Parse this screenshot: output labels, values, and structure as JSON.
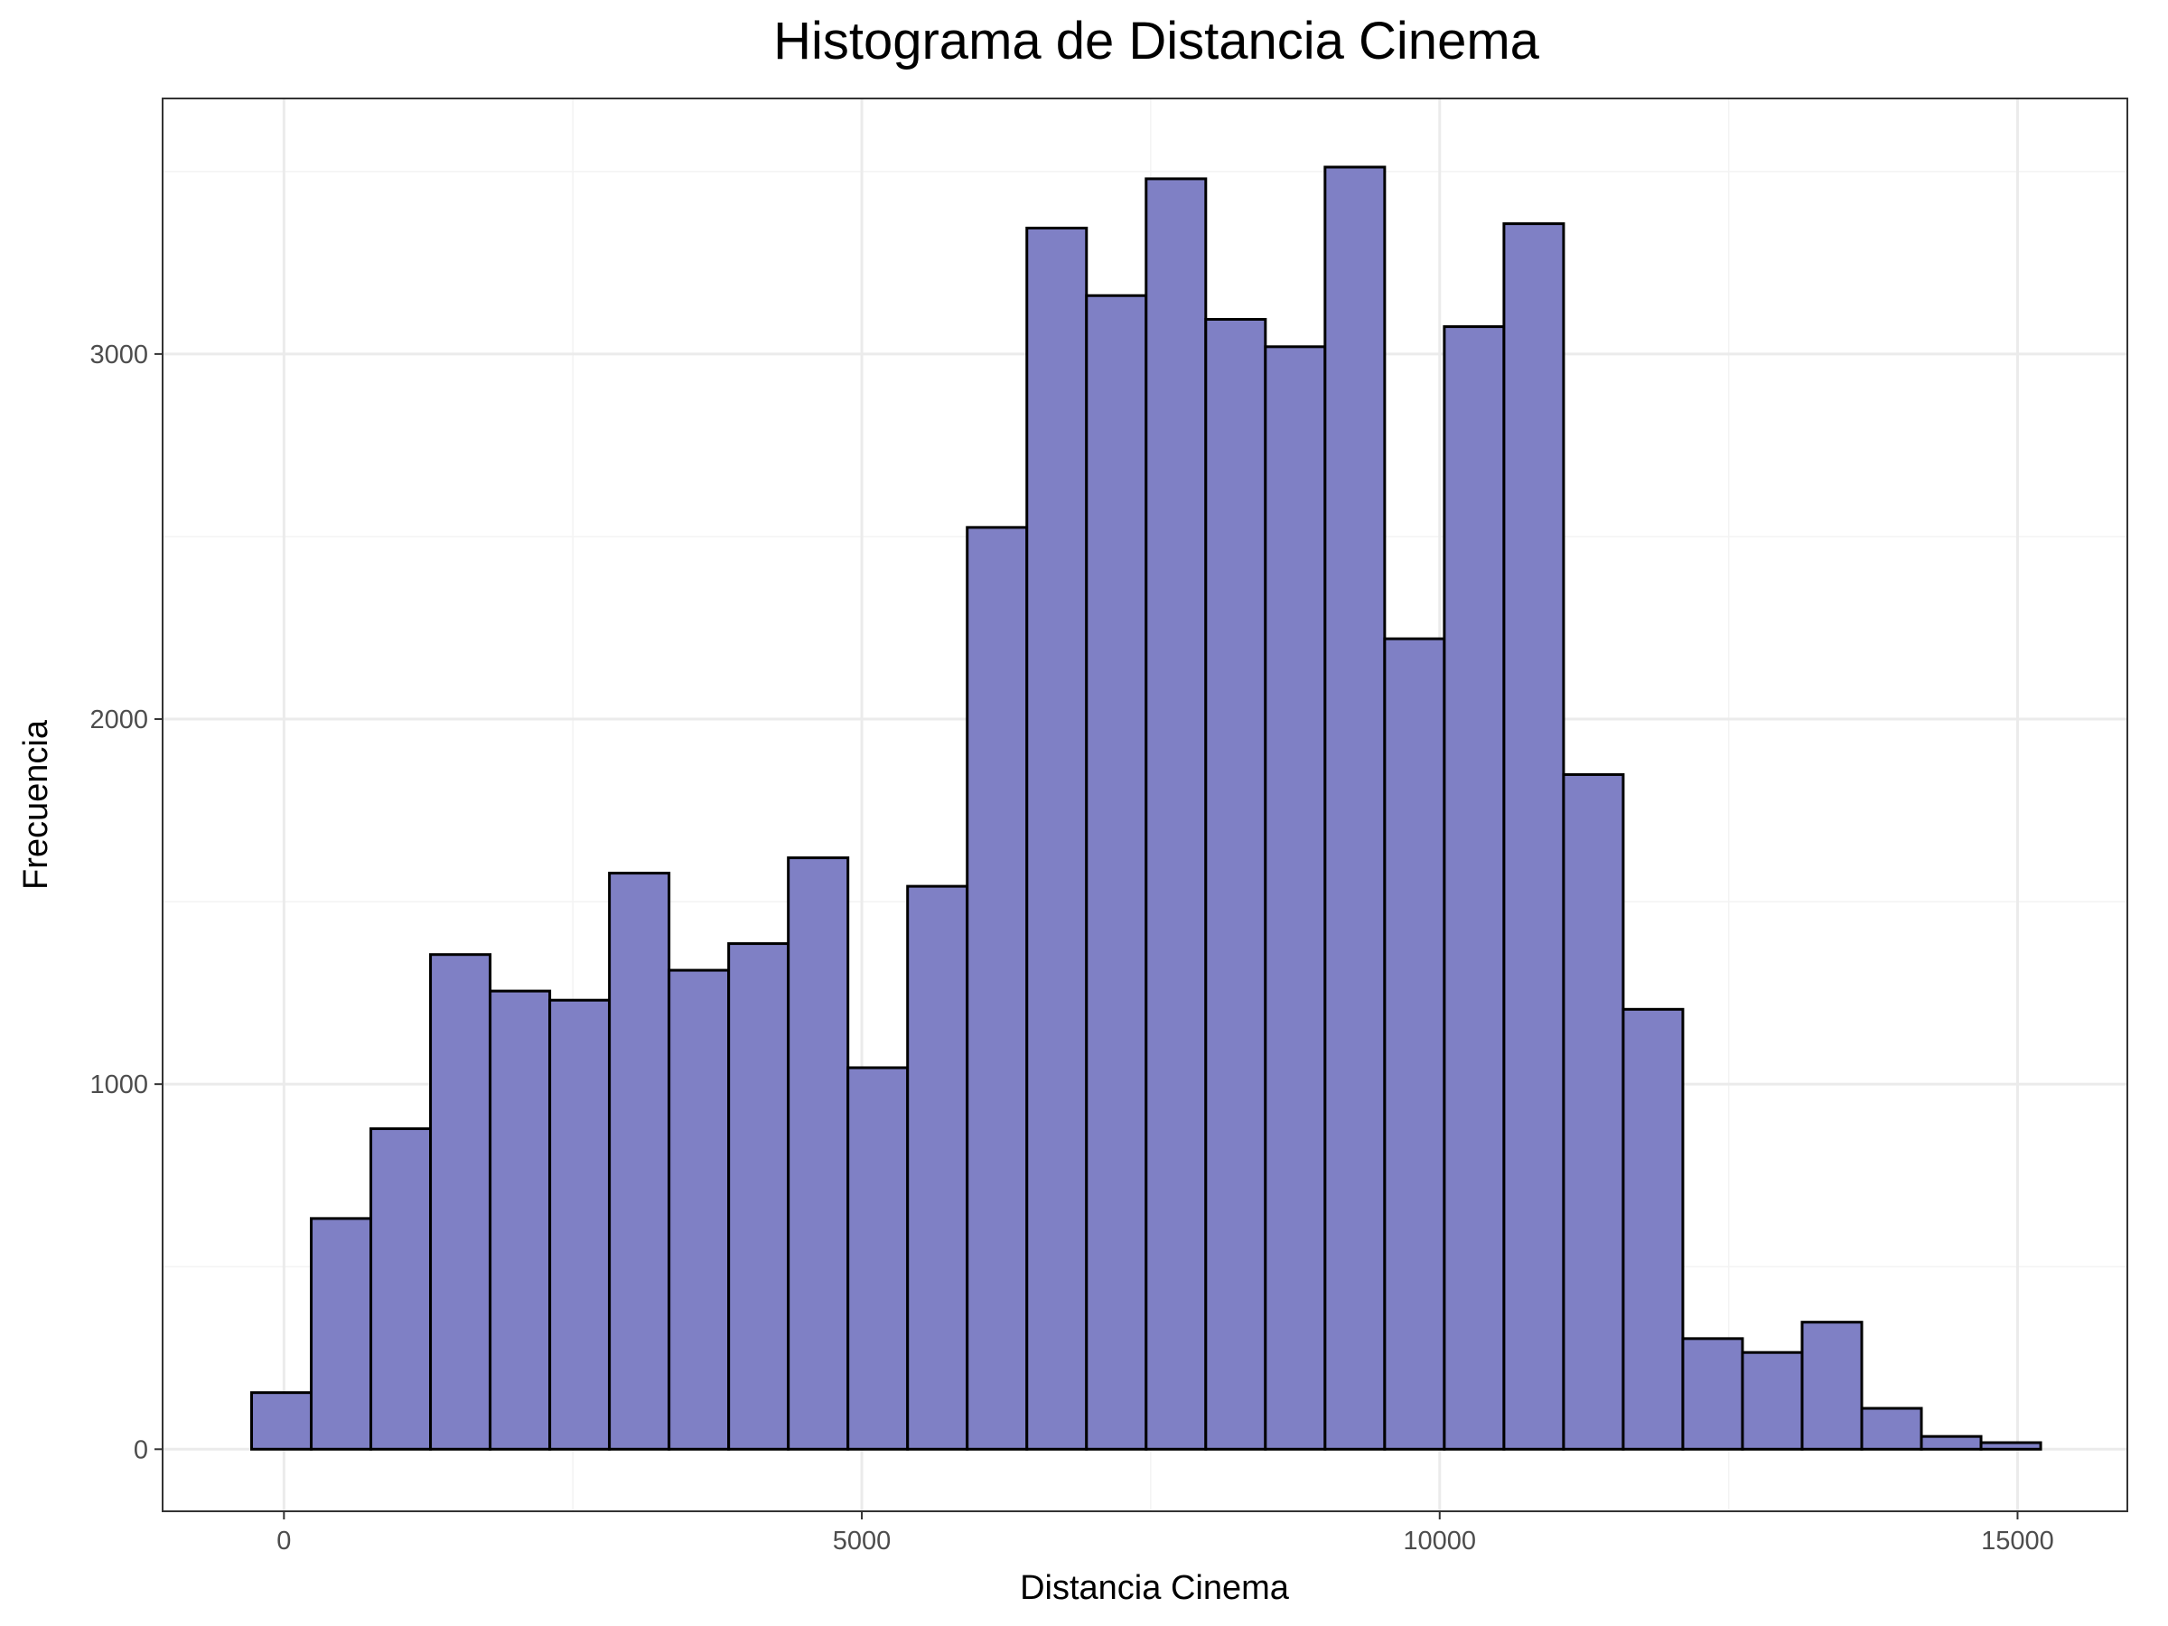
{
  "chart_data": {
    "type": "bar",
    "title": "Histograma de Distancia Cinema",
    "xlabel": "Distancia Cinema",
    "ylabel": "Frecuencia",
    "bin_width": 516,
    "bins": [
      {
        "x0": -280,
        "x1": 236,
        "count": 155
      },
      {
        "x0": 236,
        "x1": 752,
        "count": 632
      },
      {
        "x0": 752,
        "x1": 1268,
        "count": 878
      },
      {
        "x0": 1268,
        "x1": 1784,
        "count": 1355
      },
      {
        "x0": 1784,
        "x1": 2300,
        "count": 1255
      },
      {
        "x0": 2300,
        "x1": 2816,
        "count": 1230
      },
      {
        "x0": 2816,
        "x1": 3332,
        "count": 1578
      },
      {
        "x0": 3332,
        "x1": 3848,
        "count": 1312
      },
      {
        "x0": 3848,
        "x1": 4364,
        "count": 1385
      },
      {
        "x0": 4364,
        "x1": 4880,
        "count": 1620
      },
      {
        "x0": 4880,
        "x1": 5396,
        "count": 1045
      },
      {
        "x0": 5396,
        "x1": 5912,
        "count": 1542
      },
      {
        "x0": 5912,
        "x1": 6428,
        "count": 2525
      },
      {
        "x0": 6428,
        "x1": 6944,
        "count": 3345
      },
      {
        "x0": 6944,
        "x1": 7460,
        "count": 3160
      },
      {
        "x0": 7460,
        "x1": 7976,
        "count": 3480
      },
      {
        "x0": 7976,
        "x1": 8492,
        "count": 3095
      },
      {
        "x0": 8492,
        "x1": 9008,
        "count": 3020
      },
      {
        "x0": 9008,
        "x1": 9524,
        "count": 3512
      },
      {
        "x0": 9524,
        "x1": 10040,
        "count": 2220
      },
      {
        "x0": 10040,
        "x1": 10556,
        "count": 3075
      },
      {
        "x0": 10556,
        "x1": 11072,
        "count": 3357
      },
      {
        "x0": 11072,
        "x1": 11588,
        "count": 1848
      },
      {
        "x0": 11588,
        "x1": 12104,
        "count": 1205
      },
      {
        "x0": 12104,
        "x1": 12620,
        "count": 303
      },
      {
        "x0": 12620,
        "x1": 13136,
        "count": 265
      },
      {
        "x0": 13136,
        "x1": 13652,
        "count": 348
      },
      {
        "x0": 13652,
        "x1": 14168,
        "count": 112
      },
      {
        "x0": 14168,
        "x1": 14684,
        "count": 35
      },
      {
        "x0": 14684,
        "x1": 15200,
        "count": 18
      }
    ],
    "xlim": [
      -1050,
      15950
    ],
    "ylim": [
      -170,
      3700
    ],
    "x_ticks": [
      0,
      5000,
      10000,
      15000
    ],
    "x_tick_labels": [
      "0",
      "5000",
      "10000",
      "15000"
    ],
    "y_ticks": [
      0,
      1000,
      2000,
      3000
    ],
    "y_tick_labels": [
      "0",
      "1000",
      "2000",
      "3000"
    ],
    "grid": true,
    "legend": "none",
    "colors": {
      "bar_fill": "#7f80c5",
      "bar_stroke": "#000000",
      "grid_major": "#ebebeb",
      "grid_minor": "#f3f3f3",
      "panel_border": "#333333",
      "tick_text": "#4d4d4d"
    }
  }
}
